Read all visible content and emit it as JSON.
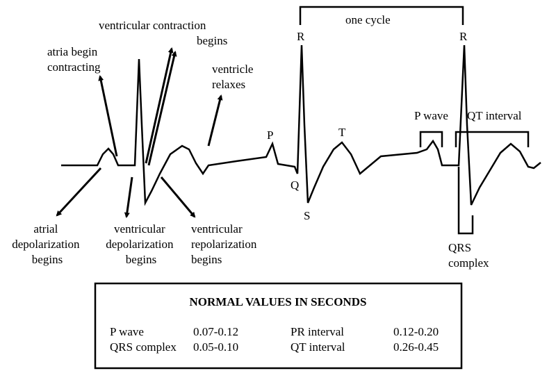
{
  "annotations": {
    "atria_begin_contracting": [
      "atria begin",
      "contracting"
    ],
    "ventricular_contraction_begins": [
      "ventricular  contraction",
      "begins"
    ],
    "ventricle_relaxes": [
      "ventricle",
      "relaxes"
    ],
    "atrial_depolarization_begins": [
      "atrial",
      "depolarization",
      "begins"
    ],
    "ventricular_depolarization_begins": [
      "ventricular",
      "depolarization",
      "begins"
    ],
    "ventricular_repolarization_begins": [
      "ventricular",
      "repolarization",
      "begins"
    ],
    "qrs_complex": [
      "QRS",
      "complex"
    ]
  },
  "wave_labels": {
    "p1": "P",
    "r1": "R",
    "q": "Q",
    "s": "S",
    "t": "T",
    "r2": "R",
    "one_cycle": "one cycle",
    "p_wave": "P wave",
    "qt_interval": "QT  interval"
  },
  "table": {
    "title": "NORMAL VALUES IN SECONDS",
    "rows": [
      [
        "P wave",
        "0.07-0.12",
        "PR  interval",
        "0.12-0.20"
      ],
      [
        "QRS complex",
        "0.05-0.10",
        "QT interval",
        "0.26-0.45"
      ]
    ]
  }
}
